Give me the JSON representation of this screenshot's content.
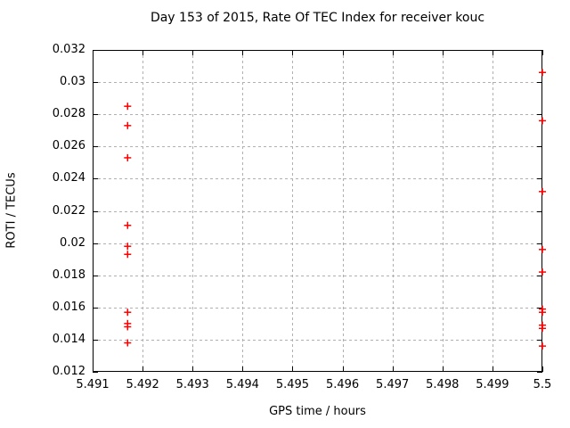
{
  "chart_data": {
    "type": "scatter",
    "title": "Day 153 of 2015, Rate Of TEC Index for receiver kouc",
    "xlabel": "GPS time / hours",
    "ylabel": "ROTI / TECUs",
    "xlim": [
      5.491,
      5.5
    ],
    "ylim": [
      0.012,
      0.032
    ],
    "grid": true,
    "legend": "none",
    "marker": "plus",
    "colors": {
      "marker": "#ff0000",
      "grid": "#b0b0b0",
      "border": "#000000",
      "text": "#000000",
      "background": "#ffffff"
    },
    "xticks": [
      {
        "v": 5.491,
        "label": "5.491"
      },
      {
        "v": 5.492,
        "label": "5.492"
      },
      {
        "v": 5.493,
        "label": "5.493"
      },
      {
        "v": 5.494,
        "label": "5.494"
      },
      {
        "v": 5.495,
        "label": "5.495"
      },
      {
        "v": 5.496,
        "label": "5.496"
      },
      {
        "v": 5.497,
        "label": "5.497"
      },
      {
        "v": 5.498,
        "label": "5.498"
      },
      {
        "v": 5.499,
        "label": "5.499"
      },
      {
        "v": 5.5,
        "label": "5.5"
      }
    ],
    "yticks": [
      {
        "v": 0.012,
        "label": "0.012"
      },
      {
        "v": 0.014,
        "label": "0.014"
      },
      {
        "v": 0.016,
        "label": "0.016"
      },
      {
        "v": 0.018,
        "label": "0.018"
      },
      {
        "v": 0.02,
        "label": "0.02"
      },
      {
        "v": 0.022,
        "label": "0.022"
      },
      {
        "v": 0.024,
        "label": "0.024"
      },
      {
        "v": 0.026,
        "label": "0.026"
      },
      {
        "v": 0.028,
        "label": "0.028"
      },
      {
        "v": 0.03,
        "label": "0.03"
      },
      {
        "v": 0.032,
        "label": "0.032"
      }
    ],
    "series": [
      {
        "name": "ROTI",
        "points": [
          [
            5.4917,
            0.0285
          ],
          [
            5.4917,
            0.0273
          ],
          [
            5.4917,
            0.0253
          ],
          [
            5.4917,
            0.0211
          ],
          [
            5.4917,
            0.0198
          ],
          [
            5.4917,
            0.0193
          ],
          [
            5.4917,
            0.0157
          ],
          [
            5.4917,
            0.015
          ],
          [
            5.4917,
            0.0148
          ],
          [
            5.4917,
            0.0138
          ],
          [
            5.5,
            0.0306
          ],
          [
            5.5,
            0.0276
          ],
          [
            5.5,
            0.0232
          ],
          [
            5.5,
            0.0196
          ],
          [
            5.5,
            0.0182
          ],
          [
            5.5,
            0.0159
          ],
          [
            5.5,
            0.0157
          ],
          [
            5.5,
            0.0149
          ],
          [
            5.5,
            0.0147
          ],
          [
            5.5,
            0.0136
          ]
        ]
      }
    ]
  }
}
